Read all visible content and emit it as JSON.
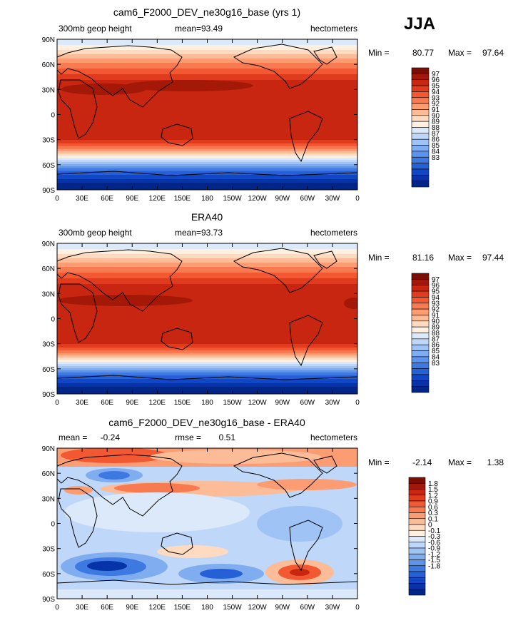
{
  "season": "JJA",
  "colors": {
    "pos": [
      "#fff0e0",
      "#fedbc0",
      "#fcbc97",
      "#fb9c73",
      "#f87a50",
      "#f25932",
      "#e03b1c",
      "#c82610",
      "#a41808",
      "#7d0d02"
    ],
    "neg": [
      "#dbe9fb",
      "#bfd7f8",
      "#a0c3f5",
      "#80adf0",
      "#5e93ea",
      "#3e79e2",
      "#2560d6",
      "#1147c4",
      "#0634a8",
      "#022588"
    ],
    "land": "#000000"
  },
  "chart_data": [
    {
      "type": "heatmap",
      "title": "cam6_F2000_DEV_ne30g16_base (yrs 1)",
      "left_label": "300mb geop height",
      "mean_label": "mean=",
      "mean": "93.49",
      "units": "hectometers",
      "min_label": "Min =",
      "min": "80.77",
      "max_label": "Max =",
      "max": "97.64",
      "xticks": [
        "0",
        "30E",
        "60E",
        "90E",
        "120E",
        "150E",
        "180",
        "150W",
        "120W",
        "90W",
        "60W",
        "30W",
        "0"
      ],
      "yticks": [
        "90N",
        "60N",
        "30N",
        "0",
        "30S",
        "60S",
        "90S"
      ],
      "levels": [
        "97",
        "96",
        "95",
        "94",
        "93",
        "92",
        "91",
        "90",
        "89",
        "88",
        "87",
        "86",
        "85",
        "84",
        "83"
      ]
    },
    {
      "type": "heatmap",
      "title": "ERA40",
      "left_label": "300mb geop height",
      "mean_label": "mean=",
      "mean": "93.73",
      "units": "hectometers",
      "min_label": "Min =",
      "min": "81.16",
      "max_label": "Max =",
      "max": "97.44",
      "xticks": [
        "0",
        "30E",
        "60E",
        "90E",
        "120E",
        "150E",
        "180",
        "150W",
        "120W",
        "90W",
        "60W",
        "30W",
        "0"
      ],
      "yticks": [
        "90N",
        "60N",
        "30N",
        "0",
        "30S",
        "60S",
        "90S"
      ],
      "levels": [
        "97",
        "96",
        "95",
        "94",
        "93",
        "92",
        "91",
        "90",
        "89",
        "88",
        "87",
        "86",
        "85",
        "84",
        "83"
      ]
    },
    {
      "type": "heatmap",
      "title": "cam6_F2000_DEV_ne30g16_base - ERA40",
      "left_label": "mean =",
      "mean_label": "",
      "mean": "-0.24",
      "rmse_label": "rmse =",
      "rmse": "0.51",
      "units": "hectometers",
      "min_label": "Min =",
      "min": "-2.14",
      "max_label": "Max =",
      "max": "1.38",
      "xticks": [
        "0",
        "30E",
        "60E",
        "90E",
        "120E",
        "150E",
        "180",
        "150W",
        "120W",
        "90W",
        "60W",
        "30W",
        "0"
      ],
      "yticks": [
        "90N",
        "60N",
        "30N",
        "0",
        "30S",
        "60S",
        "90S"
      ],
      "levels": [
        "1.8",
        "1.5",
        "1.2",
        "0.9",
        "0.6",
        "0.3",
        "0.1",
        "0",
        "-0.1",
        "-0.3",
        "-0.6",
        "-0.9",
        "-1.2",
        "-1.5",
        "-1.8"
      ]
    }
  ]
}
